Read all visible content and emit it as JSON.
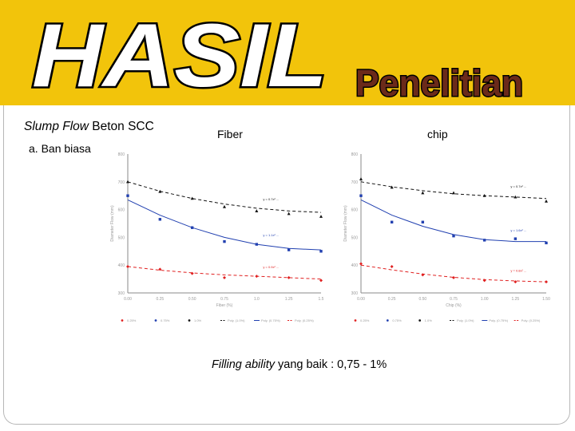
{
  "header": {
    "title_main": "HASIL",
    "title_sub": "Penelitian",
    "colors": {
      "banner": "#f2c40b",
      "title_main_fill": "#ffffff",
      "title_sub_fill": "#6b2a1a",
      "outline": "#000000"
    }
  },
  "body": {
    "slump_italic": "Slump Flow",
    "slump_rest": " Beton SCC",
    "ban_label": "a. Ban biasa",
    "fiber_label": "Fiber",
    "chip_label": "chip",
    "filling_italic": "Filling ability",
    "filling_rest": " yang baik : 0,75 - 1%"
  },
  "chart_data": [
    {
      "type": "scatter",
      "ylim": [
        300,
        800
      ],
      "xlim": [
        0,
        1.5
      ],
      "y_ticks": [
        "300",
        "400",
        "500",
        "600",
        "700",
        "800"
      ],
      "x_ticks": [
        "0.00",
        "0.25",
        "0.50",
        "0.75",
        "1.0",
        "1.25",
        "1.5"
      ],
      "ylabel": "Diameter Flow (mm)",
      "xlabel": "Fiber (%)",
      "series": [
        {
          "color": "#111111",
          "marker": "triangle",
          "x": [
            0,
            0.25,
            0.5,
            0.75,
            1.0,
            1.25,
            1.5
          ],
          "y": [
            700,
            665,
            640,
            610,
            595,
            585,
            575
          ],
          "fit": [
            700,
            666,
            640,
            620,
            605,
            595,
            590
          ],
          "fit_dash": true,
          "eq": "y = 0.7x² ..."
        },
        {
          "color": "#2140b0",
          "marker": "square",
          "x": [
            0,
            0.25,
            0.5,
            0.75,
            1.0,
            1.25,
            1.5
          ],
          "y": [
            650,
            565,
            535,
            485,
            475,
            455,
            450
          ],
          "fit": [
            635,
            580,
            535,
            500,
            475,
            460,
            455
          ],
          "fit_dash": false,
          "eq": "y = 1.1x² ..."
        },
        {
          "color": "#e02020",
          "marker": "diamond",
          "x": [
            0,
            0.25,
            0.5,
            0.75,
            1.0,
            1.25,
            1.5
          ],
          "y": [
            395,
            385,
            370,
            355,
            360,
            355,
            345
          ],
          "fit": [
            395,
            382,
            372,
            365,
            360,
            355,
            350
          ],
          "fit_dash": true,
          "eq": "y = 0.9x² ..."
        }
      ],
      "legend": [
        "0.25%",
        "0.75%",
        "1.0%",
        "Poly. (1.0%)",
        "Poly. (0.75%)",
        "Poly. (0.25%)"
      ]
    },
    {
      "type": "scatter",
      "ylim": [
        300,
        800
      ],
      "xlim": [
        0,
        1.5
      ],
      "y_ticks": [
        "300",
        "400",
        "500",
        "600",
        "700",
        "800"
      ],
      "x_ticks": [
        "0.00",
        "0.25",
        "0.50",
        "0.75",
        "1.00",
        "1.25",
        "1.50"
      ],
      "ylabel": "Diameter Flow (mm)",
      "xlabel": "Chip (%)",
      "series": [
        {
          "color": "#111111",
          "marker": "triangle",
          "x": [
            0,
            0.25,
            0.5,
            0.75,
            1.0,
            1.25,
            1.5
          ],
          "y": [
            710,
            680,
            660,
            660,
            650,
            645,
            630
          ],
          "fit": [
            700,
            682,
            668,
            657,
            650,
            645,
            640
          ],
          "fit_dash": true,
          "eq": "y = 0.7x² ..."
        },
        {
          "color": "#2140b0",
          "marker": "square",
          "x": [
            0,
            0.25,
            0.5,
            0.75,
            1.0,
            1.25,
            1.5
          ],
          "y": [
            650,
            555,
            555,
            505,
            490,
            495,
            480
          ],
          "fit": [
            635,
            580,
            540,
            510,
            492,
            485,
            485
          ],
          "fit_dash": false,
          "eq": "y = 1.6x² ..."
        },
        {
          "color": "#e02020",
          "marker": "diamond",
          "x": [
            0,
            0.25,
            0.5,
            0.75,
            1.0,
            1.25,
            1.5
          ],
          "y": [
            405,
            395,
            365,
            355,
            345,
            340,
            340
          ],
          "fit": [
            400,
            383,
            368,
            356,
            348,
            343,
            340
          ],
          "fit_dash": true,
          "eq": "y = 0.8x² ..."
        }
      ],
      "legend": [
        "0.25%",
        "0.75%",
        "1.0%",
        "Poly. (1.0%)",
        "Poly. (0.75%)",
        "Poly. (0.25%)"
      ]
    }
  ]
}
